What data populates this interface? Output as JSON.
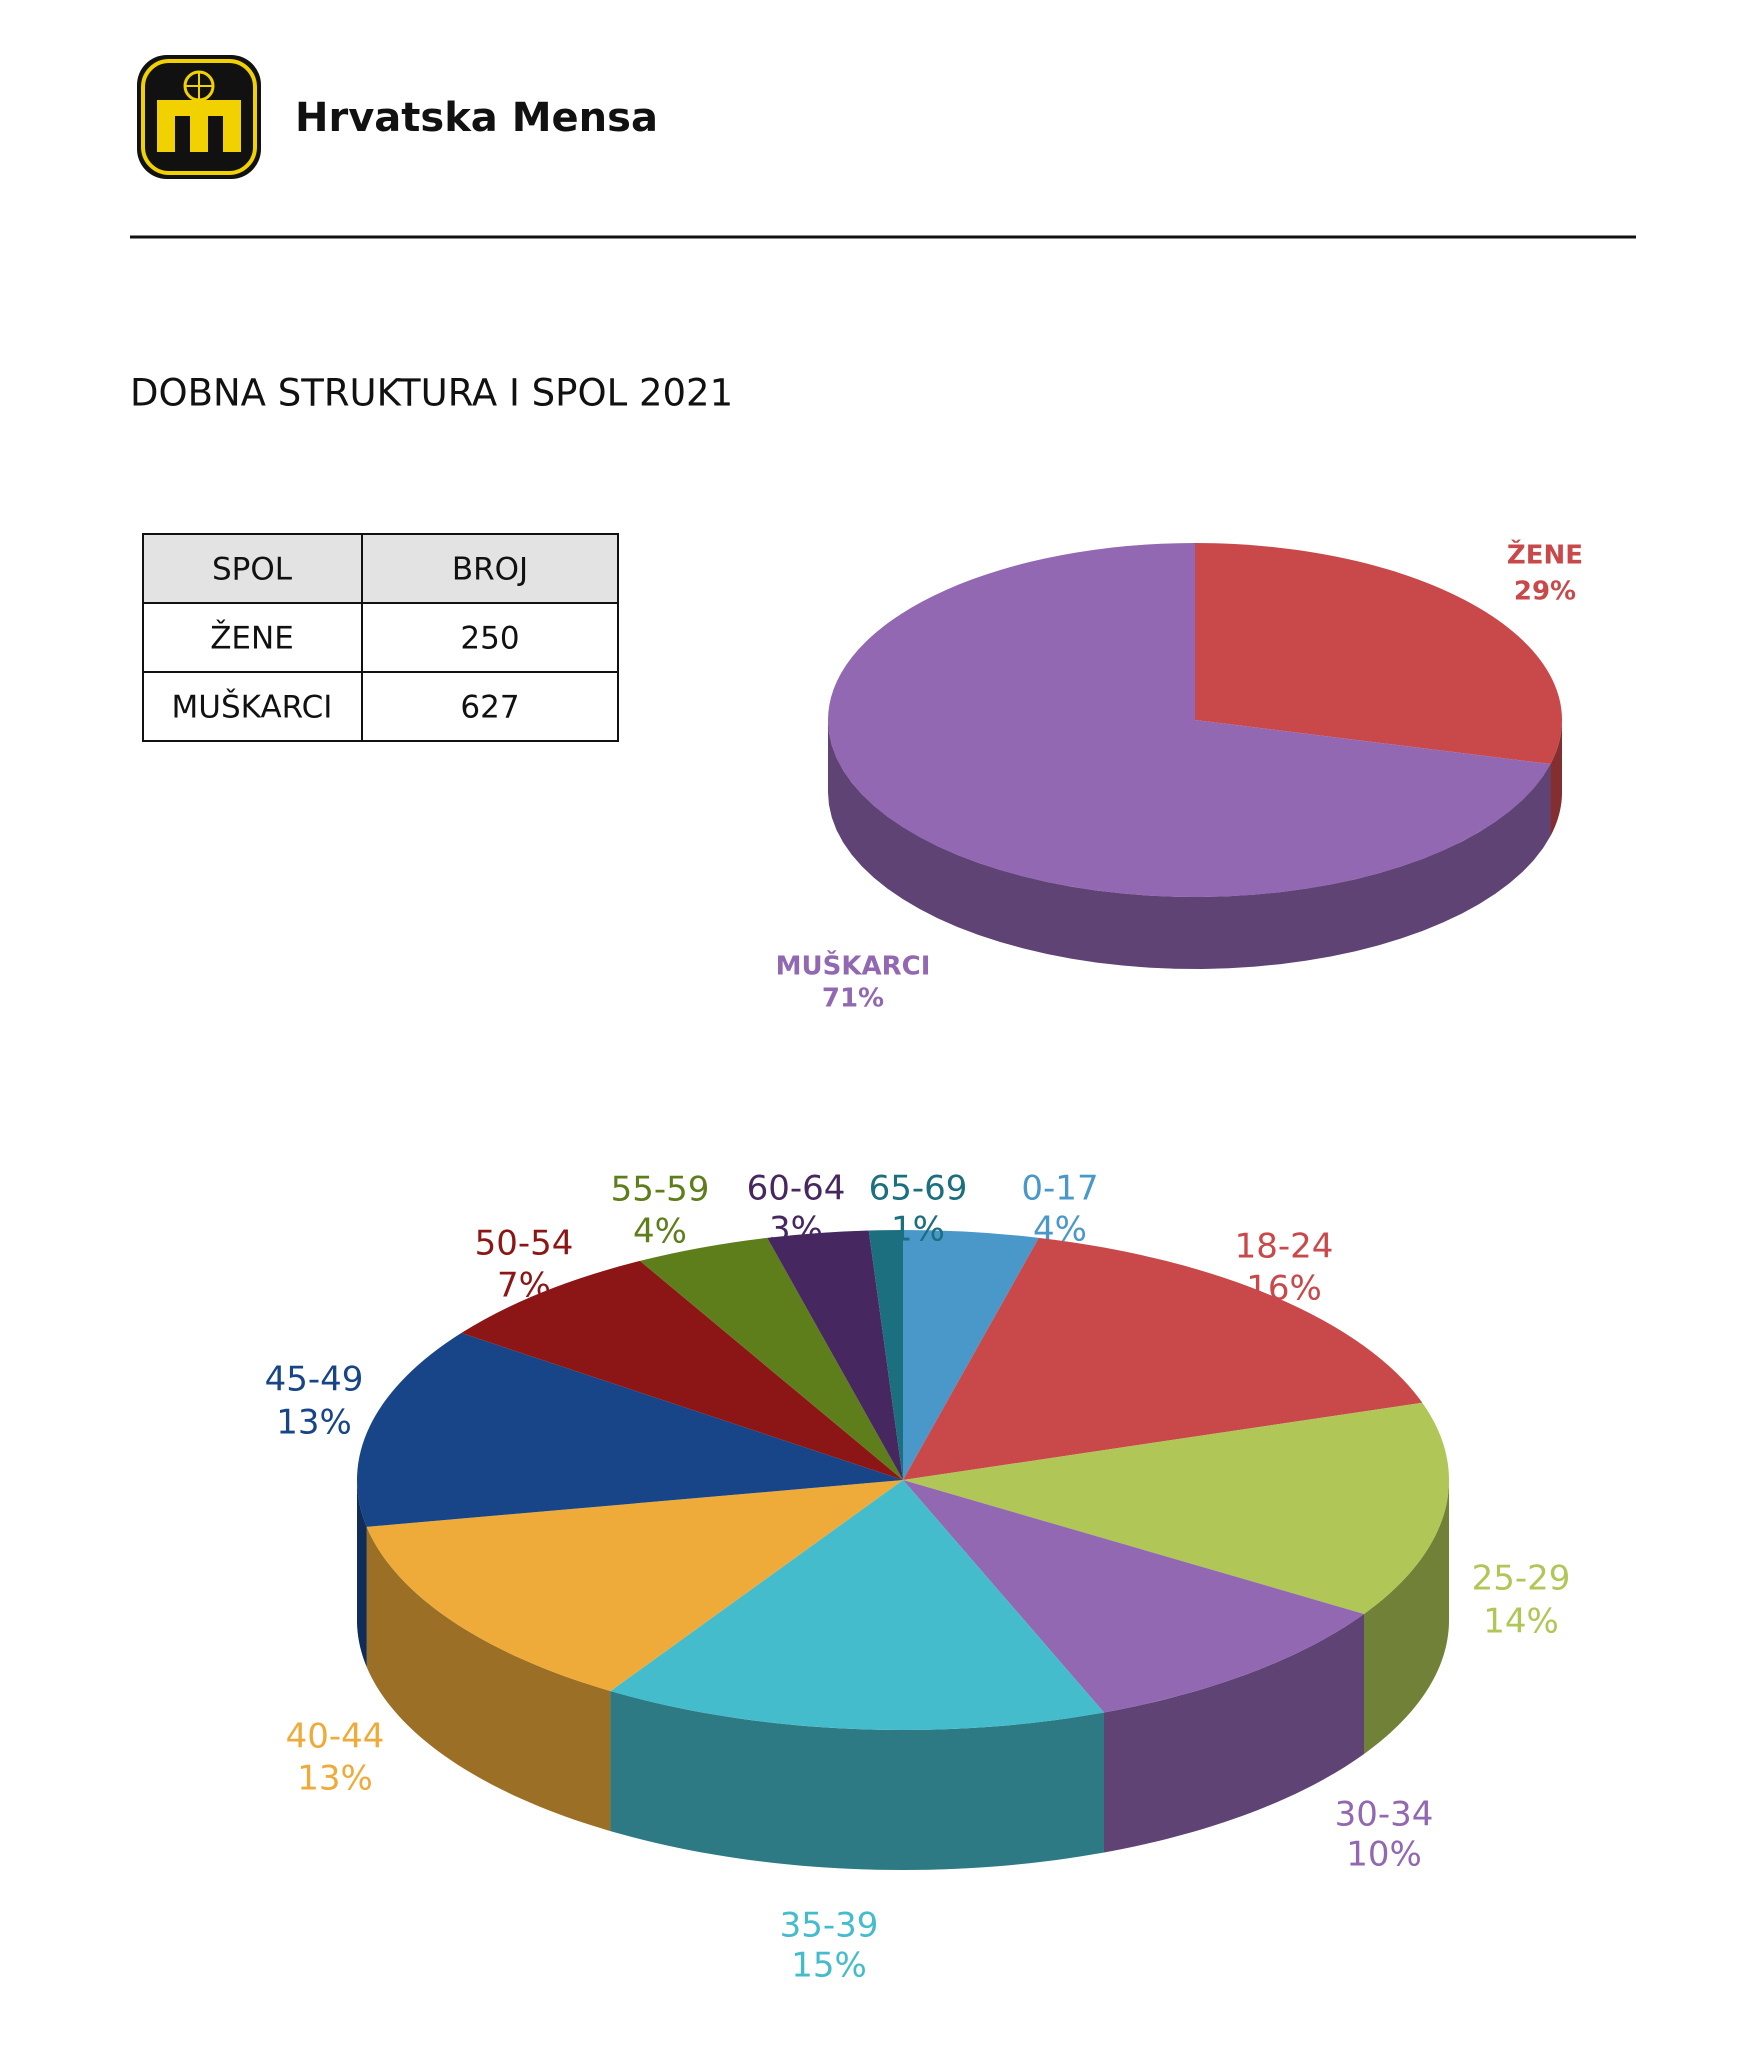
{
  "header": {
    "title": "Hrvatska Mensa"
  },
  "title": "DOBNA STRUKTURA I SPOL 2021",
  "table": {
    "header": [
      "SPOL",
      "BROJ"
    ],
    "rows": [
      [
        "ŽENE",
        250
      ],
      [
        "MUŠKARCI",
        627
      ]
    ]
  },
  "chart_data": [
    {
      "type": "pie",
      "categories": [
        "ŽENE",
        "MUŠKARCI"
      ],
      "values": [
        29,
        71
      ],
      "value_labels": [
        "29%",
        "71%"
      ],
      "colors": [
        "#c9484a",
        "#9268b2"
      ]
    },
    {
      "type": "pie",
      "categories": [
        "0-17",
        "18-24",
        "25-29",
        "30-34",
        "35-39",
        "40-44",
        "45-49",
        "50-54",
        "55-59",
        "60-64",
        "65-69"
      ],
      "values": [
        4,
        16,
        14,
        10,
        15,
        13,
        13,
        7,
        4,
        3,
        1
      ],
      "value_labels": [
        "4%",
        "16%",
        "14%",
        "10%",
        "15%",
        "13%",
        "13%",
        "7%",
        "4%",
        "3%",
        "1%"
      ],
      "colors": [
        "#4a98c9",
        "#c9484a",
        "#b0c657",
        "#9268b2",
        "#45bccc",
        "#efab3a",
        "#174588",
        "#8c1616",
        "#5e7e1c",
        "#47275f",
        "#1b6f7e"
      ]
    }
  ]
}
